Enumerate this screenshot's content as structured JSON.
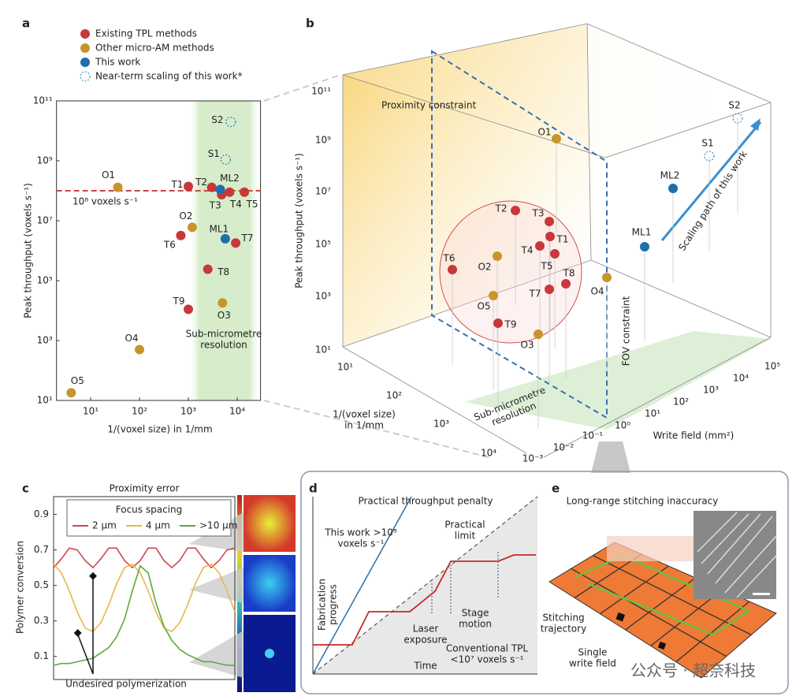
{
  "panel_labels": [
    "a",
    "b",
    "c",
    "d",
    "e"
  ],
  "chart_data": [
    {
      "type": "scatter",
      "xlabel": "1/(voxel size) in 1/mm",
      "ylabel": "Peak throughput (voxels s⁻¹)",
      "log_x": true,
      "log_y": true,
      "xlim": [
        2,
        30000
      ],
      "ylim": [
        10,
        100000000000
      ],
      "xticks": [
        {
          "value": 10,
          "label": "10¹"
        },
        {
          "value": 100,
          "label": "10²"
        },
        {
          "value": 1000,
          "label": "10³"
        },
        {
          "value": 10000,
          "label": "10⁴"
        }
      ],
      "yticks": [
        {
          "value": 10,
          "label": "10¹"
        },
        {
          "value": 1000,
          "label": "10³"
        },
        {
          "value": 100000,
          "label": "10⁵"
        },
        {
          "value": 10000000,
          "label": "10⁷"
        },
        {
          "value": 1000000000,
          "label": "10⁹"
        },
        {
          "value": 100000000000,
          "label": "10¹¹"
        }
      ],
      "reference_line": {
        "value": 100000000,
        "label": "10⁸ voxels s⁻¹",
        "color": "#d04545"
      },
      "shaded_region": {
        "xlim": [
          1000,
          30000
        ],
        "label": [
          "Sub-micrometre",
          "resolution"
        ],
        "color": "#cfe8c4"
      },
      "series": [
        {
          "name": "Existing TPL methods",
          "color": "#c8373a",
          "marker": "filled",
          "labels": [
            "T1",
            "T2",
            "T3",
            "T4",
            "T5",
            "T6",
            "T7",
            "T8",
            "T9"
          ],
          "x": [
            1000,
            3000,
            4800,
            7000,
            14000,
            700,
            9300,
            2500,
            1000
          ],
          "values": [
            140000000,
            130000000,
            74000000,
            90000000,
            90000000,
            3200000,
            1800000,
            240000,
            11000
          ]
        },
        {
          "name": "Other micro-AM methods",
          "color": "#c8952b",
          "marker": "filled",
          "labels": [
            "O1",
            "O2",
            "O3",
            "O4",
            "O5"
          ],
          "x": [
            36,
            1200,
            5000,
            100,
            4
          ],
          "values": [
            130000000,
            6000000,
            18000,
            500,
            18
          ]
        },
        {
          "name": "This work",
          "color": "#1f6fa8",
          "marker": "filled",
          "labels": [
            "ML1",
            "ML2"
          ],
          "x": [
            5700,
            4500
          ],
          "values": [
            2500000,
            110000000
          ]
        },
        {
          "name": "Near-term scaling of this work*",
          "color": "#2a7fc0",
          "marker": "dashed-circle",
          "labels": [
            "S1",
            "S2"
          ],
          "x": [
            5800,
            7400
          ],
          "values": [
            1100000000,
            20000000000
          ]
        }
      ]
    },
    {
      "type": "line",
      "title": "Proximity error",
      "ylabel": "Polymer conversion",
      "ylim": [
        -0.03,
        1.0
      ],
      "yticks": [
        0.1,
        0.3,
        0.5,
        0.7,
        0.9
      ],
      "legend_title": "Focus spacing",
      "annotation": "Undesired polymerization",
      "series": [
        {
          "name": "2 µm",
          "color": "#d0474a",
          "values": [
            0.6,
            0.65,
            0.71,
            0.7,
            0.64,
            0.6,
            0.65,
            0.71,
            0.71,
            0.64,
            0.6,
            0.64,
            0.71,
            0.71,
            0.64,
            0.6,
            0.64,
            0.71,
            0.71,
            0.65,
            0.6,
            0.64,
            0.7,
            0.71
          ]
        },
        {
          "name": "4 µm",
          "color": "#e8b84a",
          "values": [
            0.62,
            0.57,
            0.47,
            0.35,
            0.26,
            0.24,
            0.29,
            0.39,
            0.51,
            0.6,
            0.62,
            0.57,
            0.47,
            0.35,
            0.26,
            0.24,
            0.29,
            0.39,
            0.51,
            0.6,
            0.62,
            0.57,
            0.47,
            0.35
          ]
        },
        {
          "name": ">10 µm",
          "color": "#5aab3e",
          "values": [
            0.05,
            0.06,
            0.06,
            0.07,
            0.08,
            0.09,
            0.12,
            0.15,
            0.21,
            0.31,
            0.47,
            0.61,
            0.57,
            0.4,
            0.27,
            0.19,
            0.14,
            0.11,
            0.09,
            0.07,
            0.07,
            0.06,
            0.05,
            0.05
          ]
        }
      ]
    }
  ],
  "panel_b": {
    "ylabel": "Peak throughput (voxels s⁻¹)",
    "xlabel": [
      "1/(voxel size)",
      "in 1/mm"
    ],
    "zlabel": "Write field (mm²)",
    "yticks": [
      "10¹",
      "10³",
      "10⁵",
      "10⁷",
      "10⁹",
      "10¹¹"
    ],
    "xticks": [
      "10¹",
      "10²",
      "10³",
      "10⁴"
    ],
    "zticks": [
      "10⁻³",
      "10⁻²",
      "10⁻¹",
      "10⁰",
      "10¹",
      "10²",
      "10³",
      "10⁴",
      "10⁵"
    ],
    "proximity": "Proximity constraint",
    "fov": "FOV constraint",
    "submicro": [
      "Sub-micrometre",
      "resolution"
    ],
    "scaling": "Scaling path of this work",
    "points": [
      "O1",
      "T2",
      "T3",
      "T1",
      "T4",
      "T5",
      "T6",
      "O2",
      "T8",
      "T7",
      "O5",
      "O4",
      "T9",
      "O3",
      "ML1",
      "ML2",
      "S1",
      "S2"
    ]
  },
  "panel_d": {
    "title": "Practical throughput penalty",
    "ylabel": [
      "Fabrication",
      "progress"
    ],
    "xlabel": "Time",
    "this_work": [
      "This work >10⁸",
      "voxels s⁻¹"
    ],
    "limit": [
      "Practical",
      "limit"
    ],
    "laser": [
      "Laser",
      "exposure"
    ],
    "stage": [
      "Stage",
      "motion"
    ],
    "conventional": [
      "Conventional TPL",
      "<10⁷ voxels s⁻¹"
    ]
  },
  "panel_e": {
    "title": "Long-range stitching inaccuracy",
    "trajectory": [
      "Stitching",
      "trajectory"
    ],
    "field": [
      "Single",
      "write field"
    ]
  },
  "watermark": "公众号 · 超奈科技"
}
